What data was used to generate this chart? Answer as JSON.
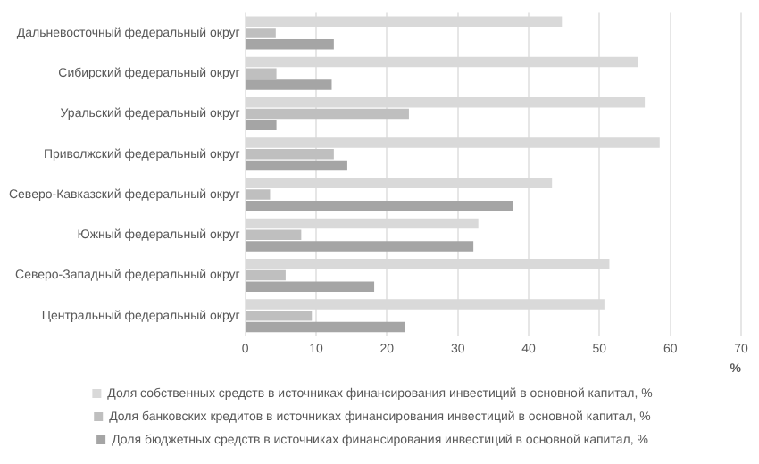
{
  "chart_data": {
    "type": "bar",
    "orientation": "horizontal",
    "categories": [
      "Дальневосточный федеральный округ",
      "Сибирский федеральный округ",
      "Уральский федеральный округ",
      "Приволжский федеральный округ",
      "Северо-Кавказский федеральный округ",
      "Южный федеральный округ",
      "Северо-Западный федеральный округ",
      "Центральный федеральный округ"
    ],
    "series": [
      {
        "name": "Доля собственных средств в источниках финансирования инвестиций в основной капитал, %",
        "color": "#d9d9d9",
        "values": [
          44.7,
          55.4,
          56.4,
          58.5,
          43.3,
          32.9,
          51.4,
          50.7
        ]
      },
      {
        "name": "Доля банковских кредитов в источниках финансирования инвестиций в основной капитал, %",
        "color": "#bfbfbf",
        "values": [
          4.3,
          4.4,
          23.1,
          12.5,
          3.5,
          7.9,
          5.7,
          9.4
        ]
      },
      {
        "name": "Доля бюджетных средств в источниках финансирования инвестиций в основной капитал, %",
        "color": "#a5a5a5",
        "values": [
          12.5,
          12.2,
          4.4,
          14.4,
          37.8,
          32.2,
          18.2,
          22.6
        ]
      }
    ],
    "xlabel": "%",
    "xlim": [
      0,
      70
    ],
    "xticks": [
      0,
      10,
      20,
      30,
      40,
      50,
      60,
      70
    ],
    "grid": "x",
    "legend": "bottom"
  }
}
